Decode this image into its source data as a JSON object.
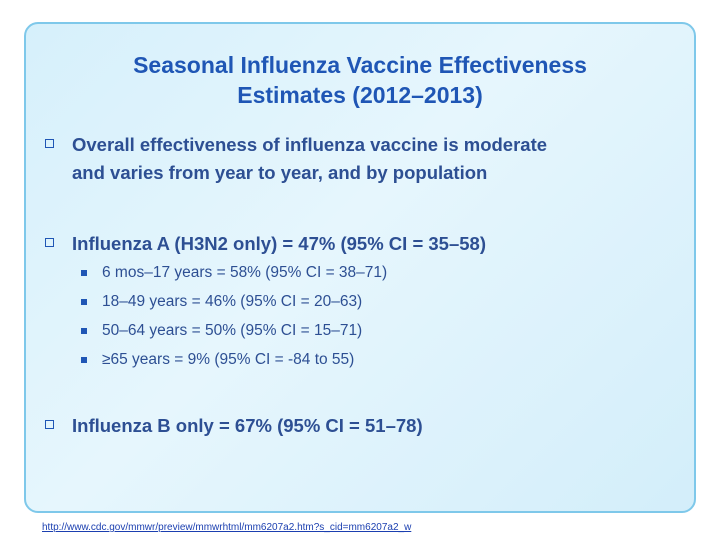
{
  "slide": {
    "title_line1": "Seasonal Influenza Vaccine Effectiveness",
    "title_line2": "Estimates (2012–2013)",
    "bullets": [
      {
        "text_line1": "Overall effectiveness of influenza vaccine is moderate",
        "text_line2": "and varies from year to year, and by population"
      },
      {
        "text": "Influenza A (H3N2 only) = 47% (95% CI = 35–58)",
        "sub": [
          "6 mos–17 years = 58% (95% CI = 38–71)",
          "18–49 years = 46% (95% CI = 20–63)",
          "50–64 years = 50% (95% CI = 15–71)",
          "≥65 years = 9% (95% CI = -84 to 55)"
        ]
      },
      {
        "text": "Influenza B only = 67% (95% CI = 51–78)"
      }
    ],
    "source_url": "http://www.cdc.gov/mmwr/preview/mmwrhtml/mm6207a2.htm?s_cid=mm6207a2_w"
  },
  "colors": {
    "title": "#1f56b5",
    "body_text": "#2d4f93",
    "frame_border": "#7ec8ea",
    "background": "#d6f0fb",
    "link": "#1b3fb0"
  },
  "icons": {
    "level1_bullet": "hollow-square-bullet-icon",
    "level2_bullet": "filled-square-bullet-icon"
  }
}
